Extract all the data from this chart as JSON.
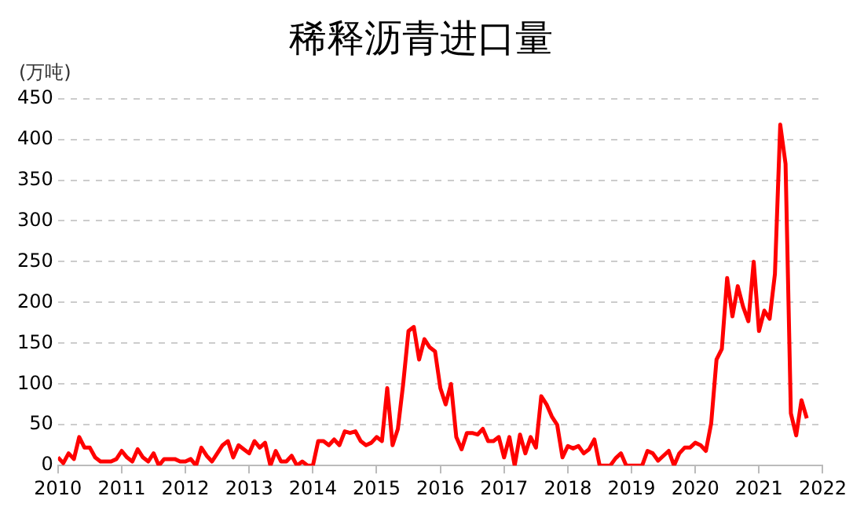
{
  "chart_data": {
    "type": "line",
    "title": "稀释沥青进口量",
    "ylabel": "(万吨)",
    "x": [
      "2010-01",
      "2010-02",
      "2010-03",
      "2010-04",
      "2010-05",
      "2010-06",
      "2010-07",
      "2010-08",
      "2010-09",
      "2010-10",
      "2010-11",
      "2010-12",
      "2011-01",
      "2011-02",
      "2011-03",
      "2011-04",
      "2011-05",
      "2011-06",
      "2011-07",
      "2011-08",
      "2011-09",
      "2011-10",
      "2011-11",
      "2011-12",
      "2012-01",
      "2012-02",
      "2012-03",
      "2012-04",
      "2012-05",
      "2012-06",
      "2012-07",
      "2012-08",
      "2012-09",
      "2012-10",
      "2012-11",
      "2012-12",
      "2013-01",
      "2013-02",
      "2013-03",
      "2013-04",
      "2013-05",
      "2013-06",
      "2013-07",
      "2013-08",
      "2013-09",
      "2013-10",
      "2013-11",
      "2013-12",
      "2014-01",
      "2014-02",
      "2014-03",
      "2014-04",
      "2014-05",
      "2014-06",
      "2014-07",
      "2014-08",
      "2014-09",
      "2014-10",
      "2014-11",
      "2014-12",
      "2015-01",
      "2015-02",
      "2015-03",
      "2015-04",
      "2015-05",
      "2015-06",
      "2015-07",
      "2015-08",
      "2015-09",
      "2015-10",
      "2015-11",
      "2015-12",
      "2016-01",
      "2016-02",
      "2016-03",
      "2016-04",
      "2016-05",
      "2016-06",
      "2016-07",
      "2016-08",
      "2016-09",
      "2016-10",
      "2016-11",
      "2016-12",
      "2017-01",
      "2017-02",
      "2017-03",
      "2017-04",
      "2017-05",
      "2017-06",
      "2017-07",
      "2017-08",
      "2017-09",
      "2017-10",
      "2017-11",
      "2017-12",
      "2018-01",
      "2018-02",
      "2018-03",
      "2018-04",
      "2018-05",
      "2018-06",
      "2018-07",
      "2018-08",
      "2018-09",
      "2018-10",
      "2018-11",
      "2018-12",
      "2019-01",
      "2019-02",
      "2019-03",
      "2019-04",
      "2019-05",
      "2019-06",
      "2019-07",
      "2019-08",
      "2019-09",
      "2019-10",
      "2019-11",
      "2019-12",
      "2020-01",
      "2020-02",
      "2020-03",
      "2020-04",
      "2020-05",
      "2020-06",
      "2020-07",
      "2020-08",
      "2020-09",
      "2020-10",
      "2020-11",
      "2020-12",
      "2021-01",
      "2021-02",
      "2021-03",
      "2021-04",
      "2021-05",
      "2021-06",
      "2021-07",
      "2021-08",
      "2021-09",
      "2021-10"
    ],
    "series": [
      {
        "color": "#ff0000",
        "values": [
          10,
          3,
          15,
          8,
          35,
          22,
          22,
          10,
          5,
          5,
          5,
          8,
          18,
          10,
          5,
          20,
          10,
          5,
          15,
          0,
          8,
          8,
          8,
          5,
          5,
          8,
          0,
          22,
          12,
          5,
          15,
          25,
          30,
          10,
          25,
          20,
          15,
          30,
          22,
          28,
          0,
          18,
          5,
          5,
          12,
          0,
          5,
          0,
          0,
          30,
          30,
          25,
          32,
          25,
          42,
          40,
          42,
          30,
          25,
          28,
          35,
          30,
          95,
          25,
          45,
          100,
          165,
          170,
          130,
          155,
          145,
          140,
          95,
          75,
          100,
          35,
          20,
          40,
          40,
          38,
          45,
          30,
          30,
          35,
          10,
          35,
          0,
          38,
          15,
          35,
          22,
          85,
          75,
          60,
          50,
          10,
          24,
          21,
          24,
          15,
          20,
          32,
          0,
          0,
          0,
          9,
          15,
          0,
          0,
          0,
          0,
          18,
          15,
          6,
          12,
          18,
          0,
          15,
          22,
          22,
          28,
          25,
          18,
          52,
          130,
          143,
          230,
          183,
          220,
          195,
          177,
          250,
          165,
          190,
          180,
          235,
          418,
          370,
          64,
          37,
          80,
          58
        ]
      }
    ],
    "xlim": [
      "2010-01",
      "2022-01"
    ],
    "xticks": [
      "2010",
      "2011",
      "2012",
      "2013",
      "2014",
      "2015",
      "2016",
      "2017",
      "2018",
      "2019",
      "2020",
      "2021",
      "2022"
    ],
    "ylim": [
      0,
      450
    ],
    "yticks": [
      0,
      50,
      100,
      150,
      200,
      250,
      300,
      350,
      400,
      450
    ],
    "grid": "y",
    "legend": false,
    "marker": "none",
    "line_style": "solid"
  }
}
